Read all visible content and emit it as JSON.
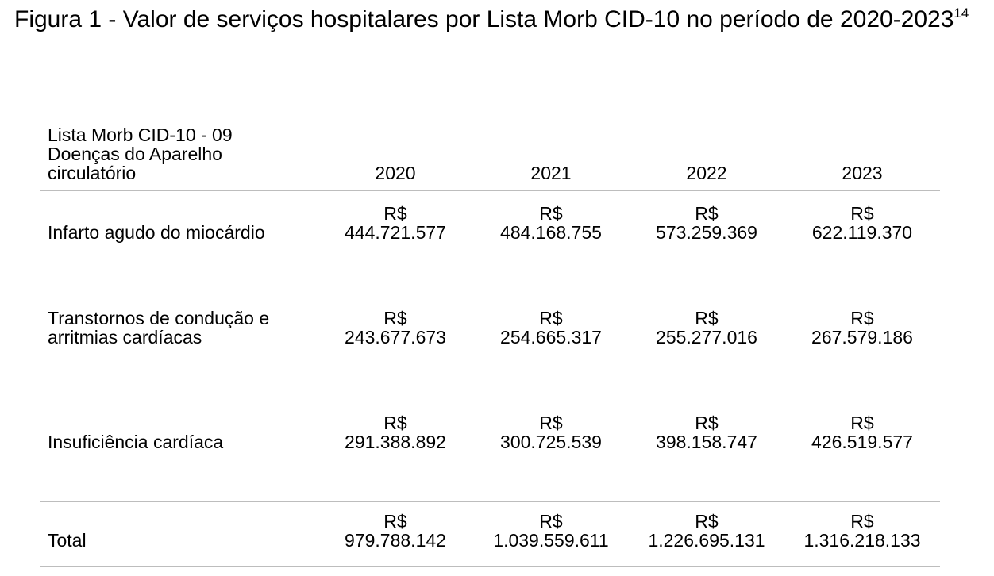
{
  "caption": {
    "text": "Figura 1 - Valor de serviços hospitalares por Lista Morb CID-10 no período de 2020-2023",
    "reference": "14"
  },
  "table": {
    "header": {
      "label_lines": [
        "Lista Morb  CID-10 - 09",
        "Doenças do Aparelho",
        "circulatório"
      ],
      "years": [
        "2020",
        "2021",
        "2022",
        "2023"
      ]
    },
    "rows": [
      {
        "label_lines": [
          "Infarto agudo do miocárdio"
        ],
        "values": [
          {
            "currency": "R$",
            "amount": "444.721.577"
          },
          {
            "currency": "R$",
            "amount": "484.168.755"
          },
          {
            "currency": "R$",
            "amount": "573.259.369"
          },
          {
            "currency": "R$",
            "amount": "622.119.370"
          }
        ]
      },
      {
        "label_lines": [
          "Transtornos de condução e",
          "arritmias cardíacas"
        ],
        "values": [
          {
            "currency": "R$",
            "amount": "243.677.673"
          },
          {
            "currency": "R$",
            "amount": "254.665.317"
          },
          {
            "currency": "R$",
            "amount": "255.277.016"
          },
          {
            "currency": "R$",
            "amount": "267.579.186"
          }
        ]
      },
      {
        "label_lines": [
          "Insuficiência cardíaca"
        ],
        "values": [
          {
            "currency": "R$",
            "amount": "291.388.892"
          },
          {
            "currency": "R$",
            "amount": "300.725.539"
          },
          {
            "currency": "R$",
            "amount": "398.158.747"
          },
          {
            "currency": "R$",
            "amount": "426.519.577"
          }
        ]
      }
    ],
    "total": {
      "label": "Total",
      "values": [
        {
          "currency": "R$",
          "amount": "979.788.142"
        },
        {
          "currency": "R$",
          "amount": "1.039.559.611"
        },
        {
          "currency": "R$",
          "amount": "1.226.695.131"
        },
        {
          "currency": "R$",
          "amount": "1.316.218.133"
        }
      ]
    }
  }
}
